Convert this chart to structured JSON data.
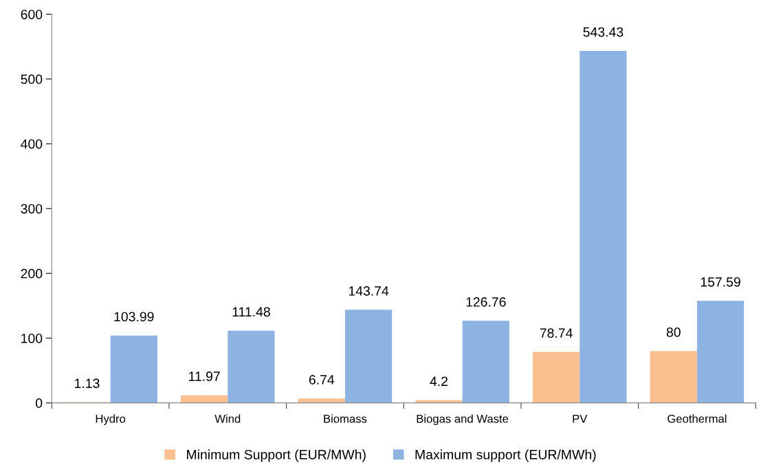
{
  "chart_data": {
    "type": "bar",
    "categories": [
      "Hydro",
      "Wind",
      "Biomass",
      "Biogas and Waste",
      "PV",
      "Geothermal"
    ],
    "series": [
      {
        "name": "Minimum Support (EUR/MWh)",
        "color": "#fac090",
        "values": [
          1.13,
          11.97,
          6.74,
          4.2,
          78.74,
          80
        ]
      },
      {
        "name": "Maximum support (EUR/MWh)",
        "color": "#8db3e2",
        "values": [
          103.99,
          111.48,
          143.74,
          126.76,
          543.43,
          157.59
        ]
      }
    ],
    "ylim": [
      0,
      600
    ],
    "yticks": [
      0,
      100,
      200,
      300,
      400,
      500,
      600
    ],
    "data_labels": true,
    "grid": false,
    "legend": "bottom"
  }
}
